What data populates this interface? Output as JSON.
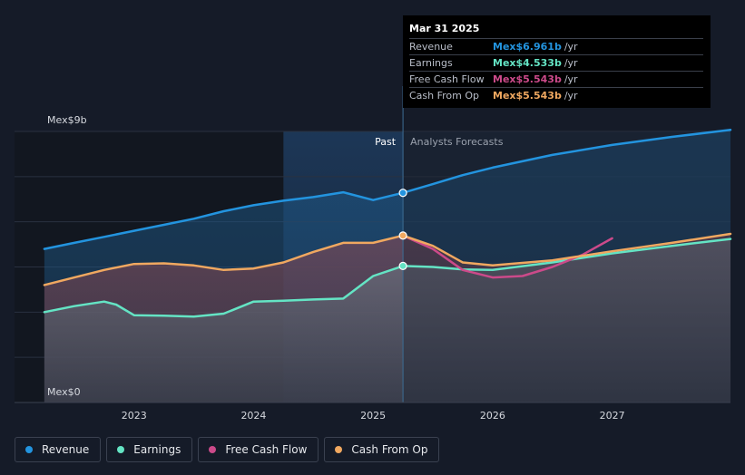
{
  "tooltip": {
    "date": "Mar 31 2025",
    "rows": [
      {
        "label": "Revenue",
        "value": "Mex$6.961b",
        "unit": "/yr",
        "color": "#2394df"
      },
      {
        "label": "Earnings",
        "value": "Mex$4.533b",
        "unit": "/yr",
        "color": "#64e4c4"
      },
      {
        "label": "Free Cash Flow",
        "value": "Mex$5.543b",
        "unit": "/yr",
        "color": "#cc4a8a"
      },
      {
        "label": "Cash From Op",
        "value": "Mex$5.543b",
        "unit": "/yr",
        "color": "#f0a860"
      }
    ]
  },
  "legend": [
    {
      "label": "Revenue",
      "color": "#2394df"
    },
    {
      "label": "Earnings",
      "color": "#64e4c4"
    },
    {
      "label": "Free Cash Flow",
      "color": "#cc4a8a"
    },
    {
      "label": "Cash From Op",
      "color": "#f0a860"
    }
  ],
  "chart_data": {
    "type": "line",
    "title": "",
    "xlabel": "",
    "ylabel": "",
    "y_top_label": "Mex$9b",
    "y_bottom_label": "Mex$0",
    "past_label": "Past",
    "forecast_label": "Analysts Forecasts",
    "divider_x": 2025.25,
    "highlight_start": 2024.25,
    "ylim": [
      0,
      9
    ],
    "xlim": [
      2022.0,
      2027.99
    ],
    "x_ticks": [
      {
        "value": 2023,
        "label": "2023"
      },
      {
        "value": 2024,
        "label": "2024"
      },
      {
        "value": 2025,
        "label": "2025"
      },
      {
        "value": 2026,
        "label": "2026"
      },
      {
        "value": 2027,
        "label": "2027"
      }
    ],
    "series": [
      {
        "name": "Revenue",
        "color": "#2394df",
        "points": [
          [
            2022.25,
            5.1
          ],
          [
            2022.5,
            5.3
          ],
          [
            2022.75,
            5.5
          ],
          [
            2023.0,
            5.7
          ],
          [
            2023.25,
            5.9
          ],
          [
            2023.5,
            6.1
          ],
          [
            2023.75,
            6.35
          ],
          [
            2024.0,
            6.55
          ],
          [
            2024.25,
            6.7
          ],
          [
            2024.5,
            6.82
          ],
          [
            2024.75,
            6.98
          ],
          [
            2025.0,
            6.72
          ],
          [
            2025.25,
            6.961
          ],
          [
            2025.5,
            7.25
          ],
          [
            2025.75,
            7.55
          ],
          [
            2026.0,
            7.8
          ],
          [
            2026.5,
            8.22
          ],
          [
            2027.0,
            8.55
          ],
          [
            2027.5,
            8.82
          ],
          [
            2027.99,
            9.05
          ]
        ]
      },
      {
        "name": "Earnings",
        "color": "#64e4c4",
        "points": [
          [
            2022.25,
            3.0
          ],
          [
            2022.5,
            3.2
          ],
          [
            2022.75,
            3.35
          ],
          [
            2022.85,
            3.25
          ],
          [
            2023.0,
            2.9
          ],
          [
            2023.25,
            2.88
          ],
          [
            2023.5,
            2.85
          ],
          [
            2023.75,
            2.95
          ],
          [
            2024.0,
            3.35
          ],
          [
            2024.25,
            3.38
          ],
          [
            2024.5,
            3.42
          ],
          [
            2024.75,
            3.45
          ],
          [
            2025.0,
            4.2
          ],
          [
            2025.25,
            4.533
          ],
          [
            2025.5,
            4.5
          ],
          [
            2025.75,
            4.42
          ],
          [
            2026.0,
            4.4
          ],
          [
            2026.5,
            4.65
          ],
          [
            2027.0,
            4.95
          ],
          [
            2027.5,
            5.2
          ],
          [
            2027.99,
            5.43
          ]
        ]
      },
      {
        "name": "Free Cash Flow",
        "color": "#cc4a8a",
        "points": [
          [
            2025.25,
            5.543
          ],
          [
            2025.5,
            5.1
          ],
          [
            2025.75,
            4.4
          ],
          [
            2026.0,
            4.15
          ],
          [
            2026.25,
            4.2
          ],
          [
            2026.5,
            4.5
          ],
          [
            2026.75,
            4.9
          ],
          [
            2027.0,
            5.45
          ]
        ]
      },
      {
        "name": "Cash From Op",
        "color": "#f0a860",
        "points": [
          [
            2022.25,
            3.9
          ],
          [
            2022.5,
            4.15
          ],
          [
            2022.75,
            4.4
          ],
          [
            2023.0,
            4.6
          ],
          [
            2023.25,
            4.62
          ],
          [
            2023.5,
            4.55
          ],
          [
            2023.75,
            4.4
          ],
          [
            2024.0,
            4.45
          ],
          [
            2024.25,
            4.65
          ],
          [
            2024.5,
            5.0
          ],
          [
            2024.75,
            5.3
          ],
          [
            2025.0,
            5.3
          ],
          [
            2025.25,
            5.543
          ],
          [
            2025.5,
            5.2
          ],
          [
            2025.75,
            4.65
          ],
          [
            2026.0,
            4.55
          ],
          [
            2026.5,
            4.72
          ],
          [
            2027.0,
            5.02
          ],
          [
            2027.5,
            5.3
          ],
          [
            2027.99,
            5.6
          ]
        ]
      }
    ]
  }
}
